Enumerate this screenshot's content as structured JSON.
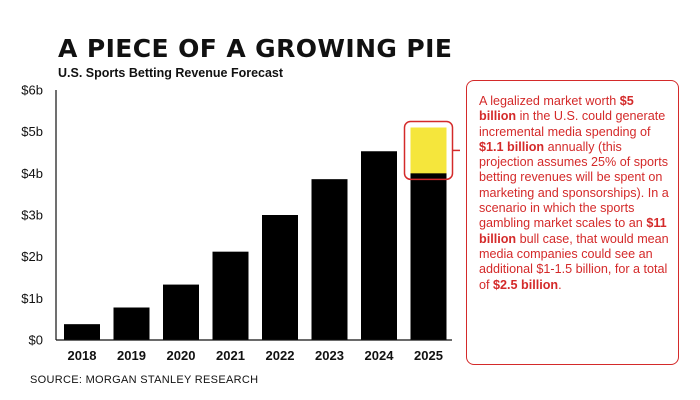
{
  "header": {
    "title": "A PIECE OF A GROWING PIE",
    "subtitle": "U.S. Sports Betting Revenue Forecast"
  },
  "source": "SOURCE: MORGAN STANLEY RESEARCH",
  "callout": {
    "segments": [
      {
        "text": "A legalized market worth ",
        "bold": false
      },
      {
        "text": "$5 billion",
        "bold": true
      },
      {
        "text": " in the U.S. could generate incremental media spending of ",
        "bold": false
      },
      {
        "text": "$1.1 billion",
        "bold": true
      },
      {
        "text": " annually (this projection assumes 25% of sports betting revenues will be spent on marketing and sponsorships). In a scenario in which the sports gambling market scales to an ",
        "bold": false
      },
      {
        "text": "$11 billion",
        "bold": true
      },
      {
        "text": " bull case, that would mean media companies could see an additional $1-1.5 billion, for a total of ",
        "bold": false
      },
      {
        "text": "$2.5 billion",
        "bold": true
      },
      {
        "text": ".",
        "bold": false
      }
    ]
  },
  "colors": {
    "bar": "#000000",
    "highlight": "#f5e63c",
    "accent": "#d42a2a",
    "axis": "#111111"
  },
  "chart_data": {
    "type": "bar",
    "categories": [
      "2018",
      "2019",
      "2020",
      "2021",
      "2022",
      "2023",
      "2024",
      "2025"
    ],
    "values": [
      0.38,
      0.78,
      1.33,
      2.12,
      3.0,
      3.86,
      4.53,
      5.1
    ],
    "highlight": {
      "category": "2025",
      "from": 4.0,
      "to": 5.1
    },
    "ylim": [
      0,
      6
    ],
    "yticks": [
      0,
      1,
      2,
      3,
      4,
      5,
      6
    ],
    "ytick_labels": [
      "$0",
      "$1b",
      "$2b",
      "$3b",
      "$4b",
      "$5b",
      "$6b"
    ],
    "grid": false
  }
}
